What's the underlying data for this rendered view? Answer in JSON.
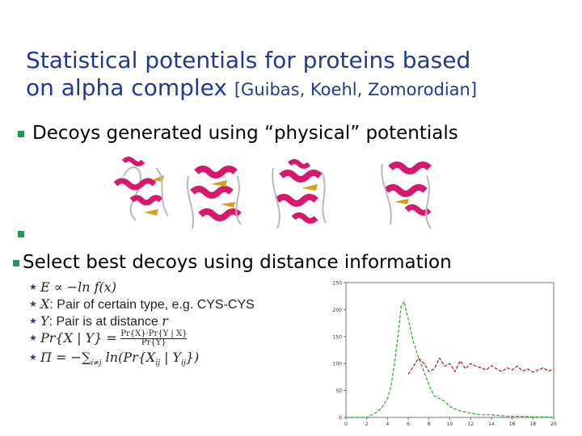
{
  "slide": {
    "title_line1": "Statistical potentials for proteins based",
    "title_line2": "on alpha complex",
    "title_cite": "[Guibas, Koehl, Zomorodian]",
    "bullet1": "Decoys generated using “physical” potentials",
    "bullet2": "",
    "bullet3": "Select best decoys using distance information",
    "colors": {
      "title": "#1f3a94",
      "bullet": "#1f9a56",
      "helix": "#d8186e",
      "strand": "#d4a017",
      "coil": "#b8b8c0"
    }
  },
  "formulas": [
    {
      "lhs": "E ∝ −ln f(x)",
      "text": ""
    },
    {
      "lhs": "X",
      "text": ": Pair of certain type, e.g. CYS-CYS"
    },
    {
      "lhs": "Y",
      "text": ": Pair is at distance ",
      "tail": "r"
    },
    {
      "lhs": "Pr{X | Y} =",
      "num": "Pr{X}·Pr{Y | X}",
      "den": "Pr{Y}"
    },
    {
      "lhs": "Π = −∑",
      "sub": "i≠j",
      "text": " ln(Pr{X",
      "sub2": "ij",
      "mid": " | Y",
      "sub3": "ij",
      "end": "})"
    }
  ],
  "chart_data": {
    "type": "line",
    "ylim": [
      0,
      250
    ],
    "xlim": [
      0,
      20
    ],
    "yticks": [
      0,
      50,
      100,
      150,
      200,
      250
    ],
    "xticks": [
      0,
      2,
      4,
      6,
      8,
      10,
      12,
      14,
      16,
      18,
      20
    ],
    "series": [
      {
        "name": "",
        "color": "#22b022",
        "x": [
          0,
          1,
          2,
          3,
          3.5,
          4,
          4.3,
          4.6,
          5,
          5.3,
          5.6,
          5.9,
          6.2,
          6.5,
          7,
          7.5,
          8,
          8.5,
          9,
          9.5,
          10,
          11,
          12,
          13,
          14,
          15,
          16,
          17,
          18,
          19,
          20
        ],
        "y": [
          0,
          0,
          0,
          10,
          20,
          35,
          55,
          90,
          150,
          205,
          215,
          190,
          165,
          140,
          110,
          85,
          60,
          40,
          35,
          30,
          20,
          12,
          8,
          5,
          5,
          3,
          2,
          2,
          1,
          1,
          0
        ]
      },
      {
        "name": "",
        "color": "#b01818",
        "x": [
          6,
          6.5,
          7,
          7.5,
          8,
          8.5,
          9,
          9.5,
          10,
          10.5,
          11,
          11.5,
          12,
          12.5,
          13,
          13.5,
          14,
          14.5,
          15,
          15.5,
          16,
          16.5,
          17,
          17.5,
          18,
          18.5,
          19,
          19.5,
          20
        ],
        "y": [
          80,
          95,
          110,
          100,
          85,
          90,
          110,
          95,
          100,
          85,
          105,
          90,
          100,
          95,
          92,
          88,
          96,
          90,
          85,
          92,
          88,
          95,
          86,
          90,
          84,
          88,
          92,
          86,
          90
        ]
      }
    ]
  }
}
